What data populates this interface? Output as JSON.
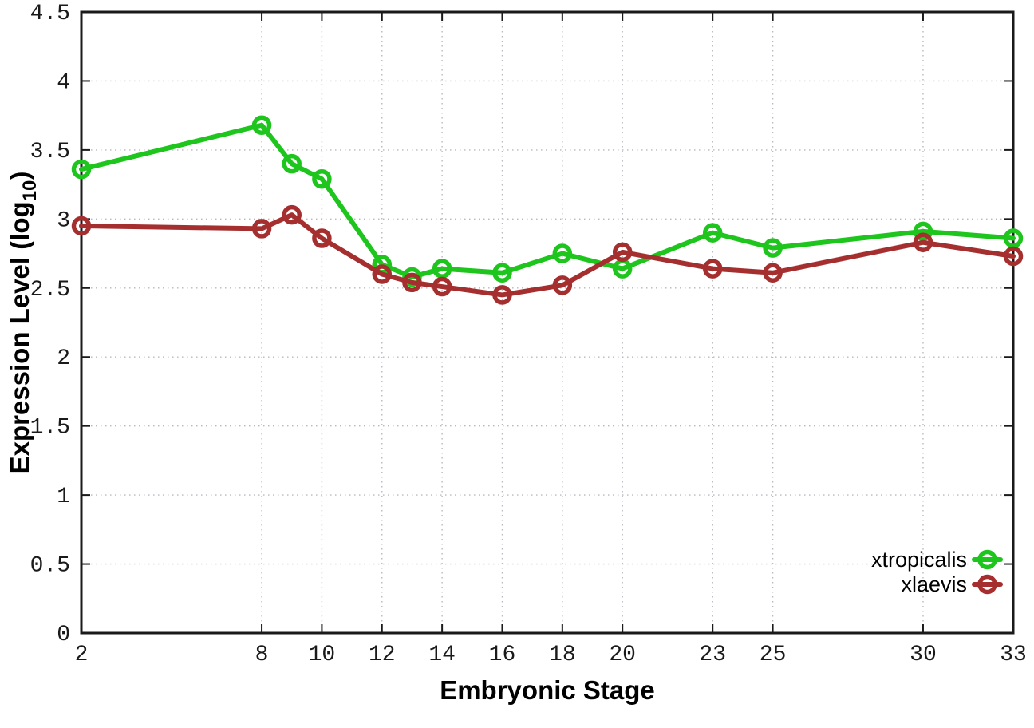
{
  "chart_data": {
    "type": "line",
    "title": "",
    "xlabel": "Embryonic Stage",
    "ylabel": "Expression Level (log10)",
    "ylabel_parts": {
      "prefix": "Expression Level (log",
      "sub": "10",
      "suffix": ")"
    },
    "x": [
      2,
      8,
      9,
      10,
      12,
      13,
      14,
      16,
      18,
      20,
      23,
      25,
      30,
      33
    ],
    "xticks": [
      2,
      8,
      10,
      12,
      14,
      16,
      18,
      20,
      23,
      25,
      30,
      33
    ],
    "yticks": [
      0,
      0.5,
      1,
      1.5,
      2,
      2.5,
      3,
      3.5,
      4,
      4.5
    ],
    "xlim": [
      2,
      33
    ],
    "ylim": [
      0,
      4.5
    ],
    "grid": true,
    "legend_position": "inside-bottom-right",
    "series": [
      {
        "name": "xtropicalis",
        "color": "#1dc51d",
        "marker": "open-circle",
        "values": [
          3.36,
          3.68,
          3.4,
          3.29,
          2.67,
          2.58,
          2.64,
          2.61,
          2.75,
          2.64,
          2.9,
          2.79,
          2.91,
          2.86
        ]
      },
      {
        "name": "xlaevis",
        "color": "#a52f2f",
        "marker": "open-circle",
        "values": [
          2.95,
          2.93,
          3.03,
          2.86,
          2.6,
          2.54,
          2.51,
          2.45,
          2.52,
          2.76,
          2.64,
          2.61,
          2.83,
          2.73
        ]
      }
    ],
    "style": {
      "border_color": "#1a1a1a",
      "grid_color": "#b8b8c0",
      "background": "#ffffff"
    }
  }
}
